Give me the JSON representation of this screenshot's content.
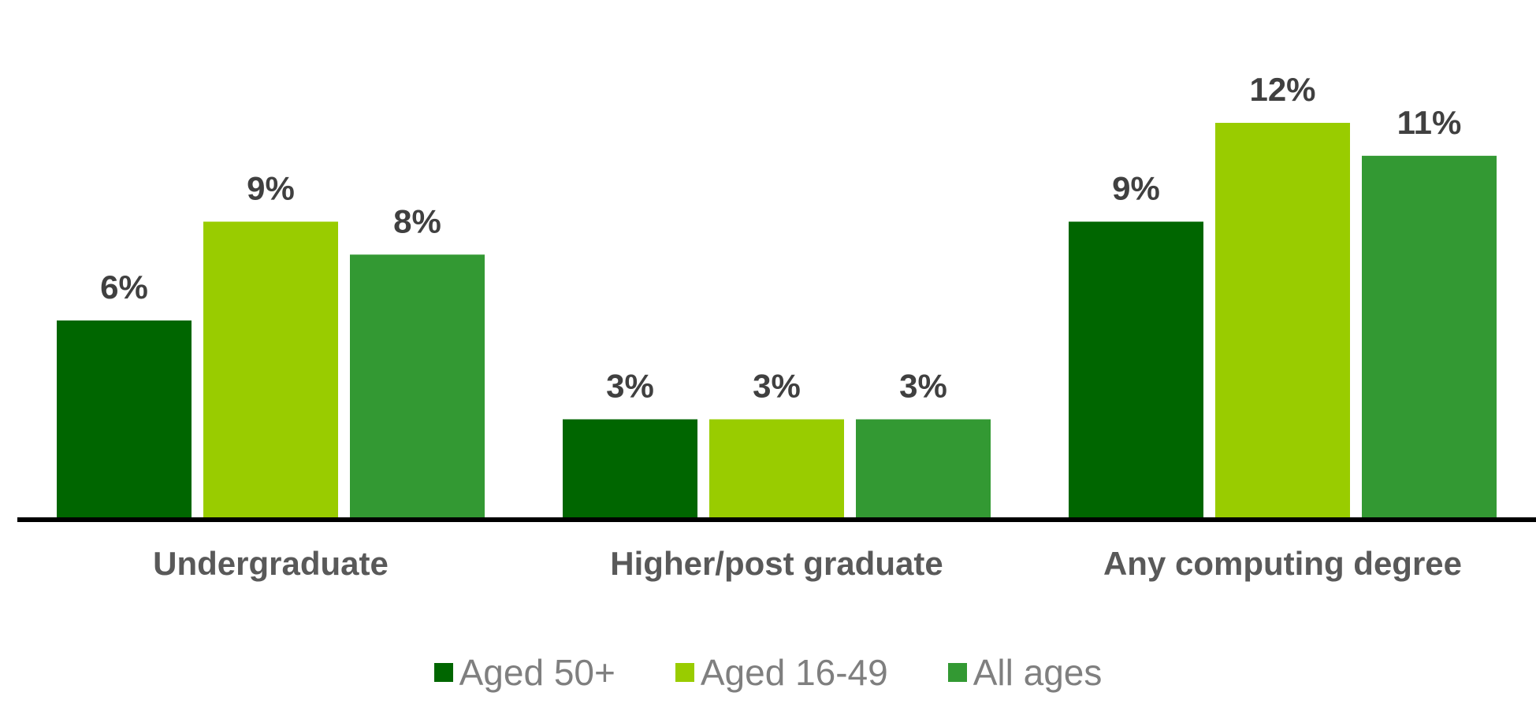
{
  "chart_data": {
    "type": "bar",
    "categories": [
      "Undergraduate",
      "Higher/post graduate",
      "Any computing degree"
    ],
    "series": [
      {
        "name": "Aged 50+",
        "color": "#006600",
        "values": [
          6,
          3,
          9
        ],
        "labels": [
          "6%",
          "3%",
          "9%"
        ]
      },
      {
        "name": "Aged 16-49",
        "color": "#99cc00",
        "values": [
          9,
          3,
          12
        ],
        "labels": [
          "9%",
          "3%",
          "12%"
        ]
      },
      {
        "name": "All ages",
        "color": "#339933",
        "values": [
          8,
          3,
          11
        ],
        "labels": [
          "8%",
          "3%",
          "11%"
        ]
      }
    ],
    "ylim": [
      0,
      12
    ],
    "unit": "%",
    "grid": false,
    "legend_position": "bottom"
  }
}
